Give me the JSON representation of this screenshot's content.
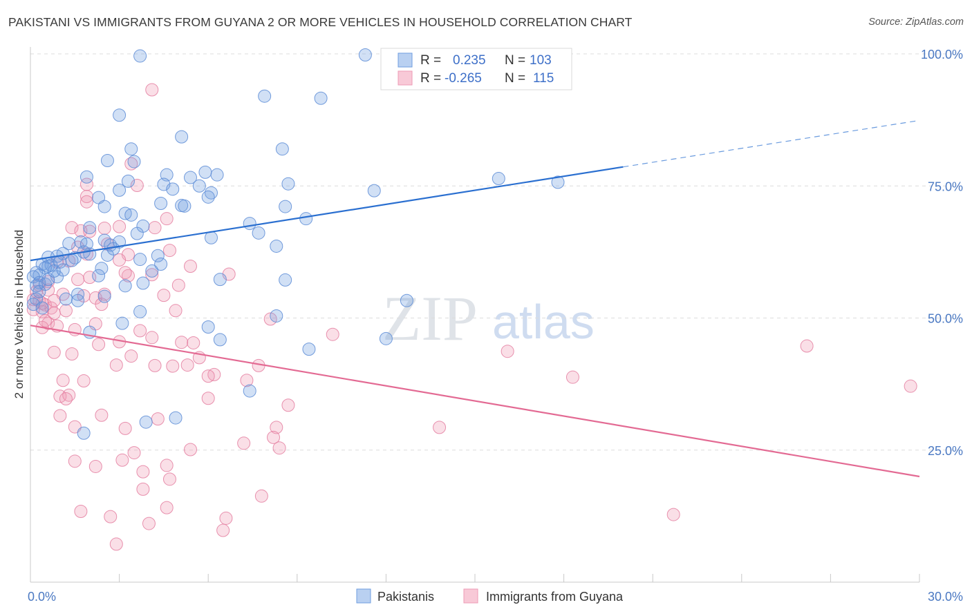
{
  "title": "PAKISTANI VS IMMIGRANTS FROM GUYANA 2 OR MORE VEHICLES IN HOUSEHOLD CORRELATION CHART",
  "source": "Source: ZipAtlas.com",
  "watermark": {
    "zip": "ZIP",
    "atlas": "atlas"
  },
  "legend": {
    "r_label": "R =",
    "n_label": "N =",
    "items": [
      {
        "r": "0.235",
        "n": "103",
        "color": "#6f9ee0"
      },
      {
        "r": "-0.265",
        "n": "115",
        "color": "#ee9ab4"
      }
    ]
  },
  "chart_data": {
    "type": "scatter",
    "xlabel": "",
    "ylabel": "2 or more Vehicles in Household",
    "xlim": [
      0,
      30
    ],
    "ylim": [
      0,
      100
    ],
    "x_tick_labels": [
      "0.0%",
      "30.0%"
    ],
    "y_tick_labels": [
      "100.0%",
      "75.0%",
      "50.0%",
      "25.0%"
    ],
    "y_ticks": [
      100,
      75,
      50,
      25
    ],
    "grid": "horizontal dashed",
    "legend_position": "top-center",
    "series": [
      {
        "name": "Pakistanis",
        "color": "#6f9ee0",
        "edge": "#5a8bd6",
        "r": 0.235,
        "n": 103,
        "trend": {
          "x0": 0,
          "y0": 60.9,
          "x1": 20.0,
          "y1": 78.6,
          "dash_to_x": 30,
          "dash_to_y": 87.4,
          "color": "#2a6fd0"
        },
        "points": [
          [
            3.7,
            99.6
          ],
          [
            11.3,
            99.8
          ],
          [
            3.0,
            88.4
          ],
          [
            7.9,
            92.0
          ],
          [
            9.8,
            91.6
          ],
          [
            5.1,
            84.3
          ],
          [
            8.5,
            82.0
          ],
          [
            3.4,
            82.0
          ],
          [
            2.6,
            79.8
          ],
          [
            3.5,
            79.6
          ],
          [
            1.9,
            76.7
          ],
          [
            4.6,
            77.1
          ],
          [
            5.4,
            76.6
          ],
          [
            5.9,
            77.6
          ],
          [
            6.3,
            77.1
          ],
          [
            3.3,
            75.9
          ],
          [
            4.5,
            75.3
          ],
          [
            4.8,
            74.4
          ],
          [
            3.0,
            74.2
          ],
          [
            5.7,
            75.0
          ],
          [
            6.1,
            73.7
          ],
          [
            6.0,
            72.9
          ],
          [
            8.7,
            75.4
          ],
          [
            11.6,
            74.1
          ],
          [
            15.8,
            76.4
          ],
          [
            17.8,
            75.7
          ],
          [
            2.3,
            72.8
          ],
          [
            2.5,
            71.1
          ],
          [
            4.4,
            71.7
          ],
          [
            5.1,
            71.3
          ],
          [
            5.2,
            71.2
          ],
          [
            8.6,
            71.1
          ],
          [
            3.2,
            69.8
          ],
          [
            3.8,
            67.4
          ],
          [
            3.4,
            69.5
          ],
          [
            9.3,
            68.8
          ],
          [
            7.4,
            67.9
          ],
          [
            2.0,
            67.1
          ],
          [
            3.6,
            66.0
          ],
          [
            7.7,
            66.1
          ],
          [
            6.1,
            65.2
          ],
          [
            1.3,
            64.1
          ],
          [
            1.7,
            64.4
          ],
          [
            1.9,
            64.0
          ],
          [
            2.5,
            64.7
          ],
          [
            2.7,
            63.8
          ],
          [
            3.0,
            64.4
          ],
          [
            8.3,
            63.6
          ],
          [
            0.6,
            61.5
          ],
          [
            0.9,
            61.7
          ],
          [
            1.1,
            62.2
          ],
          [
            1.5,
            61.4
          ],
          [
            2.0,
            62.1
          ],
          [
            2.6,
            61.9
          ],
          [
            3.7,
            61.1
          ],
          [
            4.3,
            61.8
          ],
          [
            0.4,
            60.2
          ],
          [
            0.7,
            60.0
          ],
          [
            1.0,
            60.6
          ],
          [
            1.4,
            60.9
          ],
          [
            0.6,
            59.8
          ],
          [
            0.5,
            59.5
          ],
          [
            2.4,
            59.4
          ],
          [
            4.4,
            60.2
          ],
          [
            4.1,
            58.9
          ],
          [
            0.2,
            58.6
          ],
          [
            0.3,
            58.1
          ],
          [
            0.1,
            57.8
          ],
          [
            0.9,
            57.8
          ],
          [
            2.3,
            58.0
          ],
          [
            6.4,
            57.3
          ],
          [
            8.6,
            57.2
          ],
          [
            0.3,
            56.7
          ],
          [
            0.2,
            56.1
          ],
          [
            0.5,
            56.4
          ],
          [
            3.2,
            56.1
          ],
          [
            3.8,
            56.6
          ],
          [
            0.3,
            55.0
          ],
          [
            1.6,
            54.5
          ],
          [
            2.5,
            54.1
          ],
          [
            1.2,
            53.6
          ],
          [
            1.6,
            53.3
          ],
          [
            12.7,
            53.3
          ],
          [
            3.7,
            51.2
          ],
          [
            8.3,
            50.4
          ],
          [
            3.1,
            49.0
          ],
          [
            6.0,
            48.3
          ],
          [
            2.0,
            47.3
          ],
          [
            6.4,
            45.9
          ],
          [
            12.0,
            46.1
          ],
          [
            9.4,
            44.1
          ],
          [
            7.4,
            36.2
          ],
          [
            4.9,
            31.1
          ],
          [
            3.9,
            30.3
          ],
          [
            1.8,
            28.2
          ],
          [
            0.2,
            53.6
          ],
          [
            0.1,
            52.6
          ],
          [
            0.4,
            51.9
          ],
          [
            1.8,
            62.5
          ],
          [
            2.8,
            63.1
          ],
          [
            0.6,
            57.3
          ],
          [
            0.8,
            58.9
          ],
          [
            1.1,
            59.1
          ]
        ]
      },
      {
        "name": "Immigrants from Guyana",
        "color": "#ee9ab4",
        "edge": "#e47ea0",
        "r": -0.265,
        "n": 115,
        "trend": {
          "x0": 0,
          "y0": 48.6,
          "x1": 30,
          "y1": 20.0,
          "color": "#e36a93"
        },
        "points": [
          [
            4.1,
            93.2
          ],
          [
            3.4,
            79.2
          ],
          [
            1.9,
            75.3
          ],
          [
            3.6,
            75.1
          ],
          [
            1.9,
            73.0
          ],
          [
            1.9,
            72.0
          ],
          [
            4.6,
            68.8
          ],
          [
            1.4,
            67.1
          ],
          [
            2.5,
            67.0
          ],
          [
            3.0,
            67.3
          ],
          [
            4.2,
            67.1
          ],
          [
            1.7,
            66.5
          ],
          [
            0.9,
            60.6
          ],
          [
            1.6,
            63.4
          ],
          [
            2.6,
            64.0
          ],
          [
            3.3,
            62.0
          ],
          [
            5.4,
            59.8
          ],
          [
            6.7,
            58.3
          ],
          [
            1.6,
            57.3
          ],
          [
            2.0,
            57.7
          ],
          [
            3.3,
            58.0
          ],
          [
            4.1,
            58.2
          ],
          [
            0.6,
            56.9
          ],
          [
            0.3,
            56.2
          ],
          [
            0.6,
            55.3
          ],
          [
            1.1,
            54.5
          ],
          [
            1.8,
            54.2
          ],
          [
            2.2,
            53.8
          ],
          [
            2.5,
            54.5
          ],
          [
            4.5,
            54.3
          ],
          [
            0.1,
            53.5
          ],
          [
            0.3,
            53.2
          ],
          [
            0.5,
            52.5
          ],
          [
            0.7,
            51.9
          ],
          [
            0.4,
            51.2
          ],
          [
            0.8,
            50.9
          ],
          [
            1.2,
            51.4
          ],
          [
            2.4,
            52.6
          ],
          [
            4.9,
            51.4
          ],
          [
            0.1,
            51.6
          ],
          [
            0.6,
            49.0
          ],
          [
            0.9,
            48.5
          ],
          [
            0.4,
            48.2
          ],
          [
            1.5,
            47.8
          ],
          [
            2.2,
            48.9
          ],
          [
            3.7,
            47.6
          ],
          [
            4.1,
            46.3
          ],
          [
            5.1,
            45.4
          ],
          [
            2.3,
            45.0
          ],
          [
            3.0,
            45.5
          ],
          [
            8.1,
            49.8
          ],
          [
            0.8,
            43.5
          ],
          [
            1.4,
            43.2
          ],
          [
            3.4,
            42.8
          ],
          [
            5.7,
            42.5
          ],
          [
            2.9,
            41.1
          ],
          [
            4.2,
            41.0
          ],
          [
            4.8,
            40.9
          ],
          [
            5.3,
            41.1
          ],
          [
            7.7,
            41.0
          ],
          [
            6.2,
            39.3
          ],
          [
            6.0,
            39.0
          ],
          [
            7.3,
            38.2
          ],
          [
            1.1,
            38.2
          ],
          [
            1.8,
            38.1
          ],
          [
            1.0,
            35.2
          ],
          [
            1.3,
            35.4
          ],
          [
            1.2,
            34.7
          ],
          [
            6.0,
            34.8
          ],
          [
            8.7,
            33.5
          ],
          [
            1.0,
            31.5
          ],
          [
            2.4,
            31.6
          ],
          [
            4.3,
            30.9
          ],
          [
            3.2,
            29.1
          ],
          [
            8.3,
            29.3
          ],
          [
            13.8,
            29.3
          ],
          [
            1.5,
            29.4
          ],
          [
            8.2,
            27.4
          ],
          [
            7.2,
            26.3
          ],
          [
            8.4,
            25.4
          ],
          [
            5.4,
            25.1
          ],
          [
            3.5,
            24.5
          ],
          [
            3.1,
            23.1
          ],
          [
            4.6,
            22.1
          ],
          [
            1.5,
            22.9
          ],
          [
            2.2,
            21.9
          ],
          [
            3.8,
            20.9
          ],
          [
            4.7,
            19.5
          ],
          [
            3.8,
            17.6
          ],
          [
            7.8,
            16.3
          ],
          [
            1.7,
            13.4
          ],
          [
            4.6,
            14.1
          ],
          [
            2.7,
            12.4
          ],
          [
            6.6,
            12.1
          ],
          [
            4.0,
            11.1
          ],
          [
            6.5,
            9.8
          ],
          [
            2.9,
            7.2
          ],
          [
            21.7,
            12.8
          ],
          [
            16.1,
            43.7
          ],
          [
            18.3,
            38.8
          ],
          [
            26.2,
            44.7
          ],
          [
            29.7,
            37.1
          ],
          [
            10.2,
            46.9
          ],
          [
            5.5,
            45.3
          ],
          [
            1.3,
            60.8
          ],
          [
            3.2,
            58.6
          ],
          [
            4.7,
            62.8
          ],
          [
            2.0,
            66.4
          ],
          [
            0.5,
            49.5
          ],
          [
            0.2,
            55.0
          ],
          [
            1.9,
            62.1
          ],
          [
            3.0,
            61.0
          ],
          [
            0.4,
            52.8
          ],
          [
            0.8,
            53.3
          ],
          [
            5.0,
            56.2
          ]
        ]
      }
    ]
  }
}
